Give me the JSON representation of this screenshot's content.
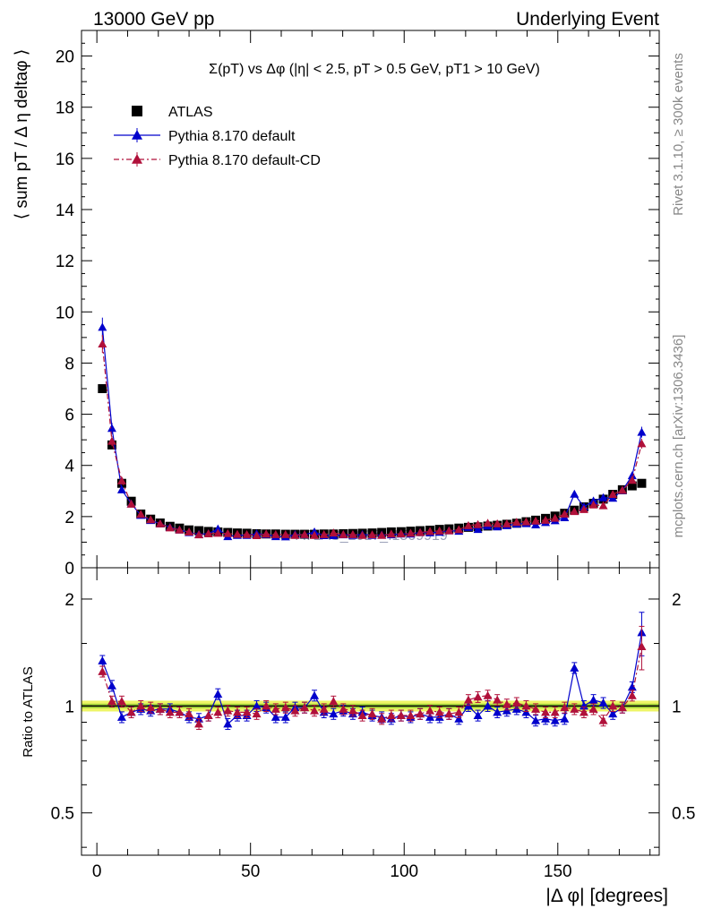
{
  "header": {
    "left": "13000 GeV pp",
    "right": "Underlying Event"
  },
  "side_labels": {
    "rivet": "Rivet 3.1.10, ≥ 300k events",
    "mcplots": "mcplots.cern.ch [arXiv:1306.3436]"
  },
  "watermark": "ATLAS_2017_I1509919",
  "chart_data": [
    {
      "type": "scatter",
      "panel": "main",
      "title": "Σ(pT) vs Δφ (|η| < 2.5, pT > 0.5 GeV, pT1 > 10 GeV)",
      "ylabel": "⟨ sum pT / Δ η deltaφ ⟩",
      "xlim": [
        -5,
        183
      ],
      "ylim": [
        0,
        21
      ],
      "grid": false,
      "legend_position": "top-left",
      "y_ticks": [
        "0",
        "2",
        "4",
        "6",
        "8",
        "10",
        "12",
        "14",
        "16",
        "18",
        "20"
      ],
      "x": [
        1.8,
        4.9,
        8.1,
        11.2,
        14.3,
        17.5,
        20.6,
        23.8,
        26.9,
        30.0,
        33.2,
        36.3,
        39.4,
        42.6,
        45.7,
        48.8,
        52.0,
        55.1,
        58.2,
        61.4,
        64.5,
        67.6,
        70.8,
        73.9,
        77.0,
        80.2,
        83.3,
        86.4,
        89.6,
        92.7,
        95.8,
        99.0,
        102.1,
        105.2,
        108.4,
        111.5,
        114.6,
        117.8,
        120.9,
        124.0,
        127.2,
        130.3,
        133.4,
        136.6,
        139.7,
        142.8,
        146.0,
        149.1,
        152.2,
        155.4,
        158.5,
        161.6,
        164.8,
        167.9,
        171.0,
        174.2,
        177.3
      ],
      "series": [
        {
          "name": "ATLAS",
          "color": "#000000",
          "marker": "square",
          "values": [
            7.0,
            4.8,
            3.3,
            2.6,
            2.1,
            1.9,
            1.75,
            1.62,
            1.55,
            1.48,
            1.45,
            1.42,
            1.4,
            1.38,
            1.36,
            1.35,
            1.33,
            1.32,
            1.32,
            1.31,
            1.31,
            1.31,
            1.31,
            1.32,
            1.32,
            1.33,
            1.34,
            1.35,
            1.36,
            1.38,
            1.4,
            1.41,
            1.43,
            1.45,
            1.47,
            1.5,
            1.52,
            1.55,
            1.58,
            1.6,
            1.63,
            1.66,
            1.7,
            1.74,
            1.8,
            1.86,
            1.93,
            2.02,
            2.13,
            2.25,
            2.38,
            2.52,
            2.68,
            2.87,
            3.05,
            3.2,
            3.3
          ]
        },
        {
          "name": "Pythia 8.170 default",
          "color": "#0000cc",
          "marker": "triangle",
          "line": "solid",
          "values": [
            9.4,
            5.45,
            3.05,
            2.5,
            2.05,
            1.85,
            1.72,
            1.58,
            1.48,
            1.38,
            1.31,
            1.33,
            1.52,
            1.22,
            1.27,
            1.27,
            1.33,
            1.3,
            1.22,
            1.21,
            1.3,
            1.29,
            1.4,
            1.26,
            1.26,
            1.29,
            1.27,
            1.3,
            1.27,
            1.28,
            1.29,
            1.32,
            1.32,
            1.38,
            1.37,
            1.39,
            1.45,
            1.43,
            1.58,
            1.5,
            1.63,
            1.6,
            1.65,
            1.71,
            1.73,
            1.68,
            1.77,
            1.84,
            1.96,
            2.88,
            2.38,
            2.61,
            2.74,
            2.72,
            3.02,
            3.6,
            5.3
          ]
        },
        {
          "name": "Pythia 8.170 default-CD",
          "color": "#b0103a",
          "marker": "triangle",
          "line": "dashdot",
          "values": [
            8.75,
            4.95,
            3.4,
            2.49,
            2.09,
            1.88,
            1.72,
            1.56,
            1.48,
            1.4,
            1.29,
            1.33,
            1.35,
            1.34,
            1.31,
            1.3,
            1.26,
            1.32,
            1.3,
            1.3,
            1.27,
            1.3,
            1.27,
            1.3,
            1.36,
            1.3,
            1.3,
            1.27,
            1.29,
            1.27,
            1.32,
            1.33,
            1.35,
            1.38,
            1.42,
            1.44,
            1.45,
            1.49,
            1.65,
            1.69,
            1.74,
            1.72,
            1.72,
            1.78,
            1.8,
            1.83,
            1.86,
            1.94,
            2.1,
            2.2,
            2.28,
            2.46,
            2.43,
            2.87,
            3.03,
            3.42,
            4.85
          ]
        }
      ]
    },
    {
      "type": "scatter",
      "panel": "ratio",
      "ylabel": "Ratio to ATLAS",
      "xlabel": "|Δ φ| [degrees]",
      "xlim": [
        -5,
        183
      ],
      "ylim": [
        0.38,
        2.45
      ],
      "y_scale": "log",
      "y_ticks": [
        "0.5",
        "1",
        "2"
      ],
      "x_ticks": [
        "0",
        "50",
        "100",
        "150"
      ],
      "reference_band": {
        "center": 1.0,
        "color": "#9acd32"
      },
      "series": [
        {
          "name": "Pythia 8.170 default",
          "values": [
            1.34,
            1.14,
            0.93,
            0.96,
            0.98,
            0.97,
            0.98,
            0.98,
            0.96,
            0.93,
            0.92,
            0.94,
            1.08,
            0.89,
            0.94,
            0.94,
            1.0,
            0.99,
            0.93,
            0.93,
            0.99,
            0.99,
            1.07,
            0.96,
            0.95,
            0.97,
            0.95,
            0.96,
            0.94,
            0.93,
            0.92,
            0.94,
            0.93,
            0.95,
            0.93,
            0.93,
            0.95,
            0.92,
            1.0,
            0.94,
            1.0,
            0.96,
            0.97,
            0.98,
            0.96,
            0.91,
            0.92,
            0.91,
            0.92,
            1.28,
            1.0,
            1.04,
            1.02,
            0.95,
            0.99,
            1.13,
            1.61
          ]
        },
        {
          "name": "Pythia 8.170 default-CD",
          "values": [
            1.25,
            1.03,
            1.03,
            0.96,
            1.0,
            0.99,
            0.98,
            0.96,
            0.96,
            0.95,
            0.89,
            0.94,
            0.96,
            0.97,
            0.96,
            0.96,
            0.95,
            1.0,
            0.98,
            0.99,
            0.97,
            0.99,
            0.97,
            0.98,
            1.03,
            0.98,
            0.97,
            0.94,
            0.95,
            0.92,
            0.94,
            0.94,
            0.94,
            0.95,
            0.97,
            0.96,
            0.95,
            0.96,
            1.04,
            1.06,
            1.07,
            1.04,
            1.01,
            1.02,
            1.0,
            0.98,
            0.96,
            0.96,
            0.99,
            0.98,
            0.96,
            0.98,
            0.91,
            1.0,
            0.99,
            1.07,
            1.47
          ]
        }
      ]
    }
  ]
}
